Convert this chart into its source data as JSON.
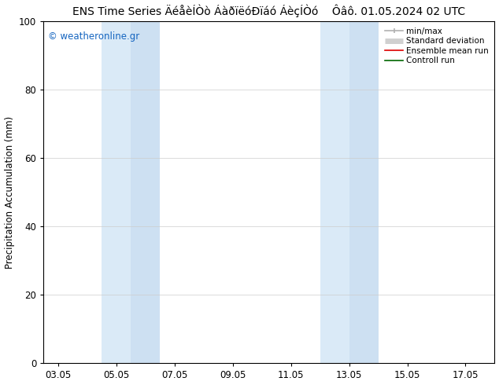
{
  "title": "ENS Time Series ÄéåèÍÒò ÁàðïëóÐïáó ÁèçÍÒó    Ôâô. 01.05.2024 02 UTC",
  "ylabel": "Precipitation Accumulation (mm)",
  "ylim": [
    0,
    100
  ],
  "xtick_labels": [
    "03.05",
    "05.05",
    "07.05",
    "09.05",
    "11.05",
    "13.05",
    "15.05",
    "17.05"
  ],
  "xtick_positions": [
    2,
    4,
    6,
    8,
    10,
    12,
    14,
    16
  ],
  "ytick_labels": [
    "0",
    "20",
    "40",
    "60",
    "80",
    "100"
  ],
  "ytick_positions": [
    0,
    20,
    40,
    60,
    80,
    100
  ],
  "xlim": [
    1.5,
    17.0
  ],
  "band1_x1": 3.5,
  "band1_xmid": 4.5,
  "band1_x2": 5.5,
  "band2_x1": 11.0,
  "band2_xmid": 12.0,
  "band2_x2": 13.0,
  "band_color_outer": "#daeaf7",
  "band_color_inner": "#cde0f2",
  "watermark_text": "© weatheronline.gr",
  "watermark_color": "#1565C0",
  "legend_items": [
    {
      "label": "min/max",
      "color": "#b0b0b0",
      "lw": 1.2
    },
    {
      "label": "Standard deviation",
      "color": "#d0d0d0",
      "lw": 5
    },
    {
      "label": "Ensemble mean run",
      "color": "#dd0000",
      "lw": 1.2
    },
    {
      "label": "Controll run",
      "color": "#006600",
      "lw": 1.2
    }
  ],
  "bg_color": "#ffffff",
  "title_fontsize": 10,
  "label_fontsize": 8.5,
  "tick_fontsize": 8.5,
  "legend_fontsize": 7.5
}
